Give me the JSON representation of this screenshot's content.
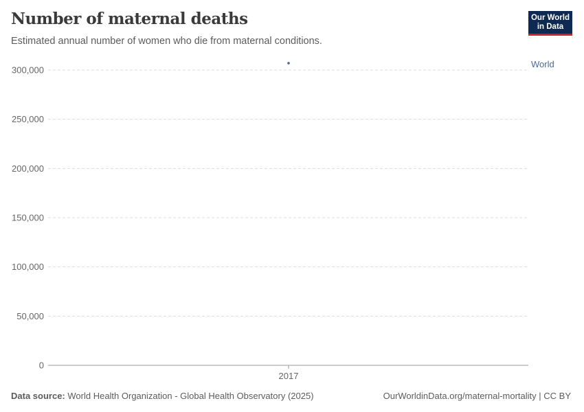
{
  "header": {
    "title": "Number of maternal deaths",
    "subtitle": "Estimated annual number of women who die from maternal conditions.",
    "logo_text": "Our World in Data"
  },
  "footer": {
    "source_label": "Data source:",
    "source": "World Health Organization - Global Health Observatory (2025)",
    "url": "OurWorldinData.org/maternal-mortality | CC BY"
  },
  "chart_data": {
    "type": "line",
    "title": "Number of maternal deaths",
    "x": [
      2017
    ],
    "xticks": [
      "2017"
    ],
    "yticks": [
      0,
      50000,
      100000,
      150000,
      200000,
      250000,
      300000
    ],
    "ytick_labels": [
      "0",
      "50,000",
      "100,000",
      "150,000",
      "200,000",
      "250,000",
      "300,000"
    ],
    "ylim": [
      0,
      300000
    ],
    "grid": true,
    "series": [
      {
        "name": "World",
        "values": [
          307000
        ],
        "color": "#4c6a9c"
      }
    ]
  }
}
